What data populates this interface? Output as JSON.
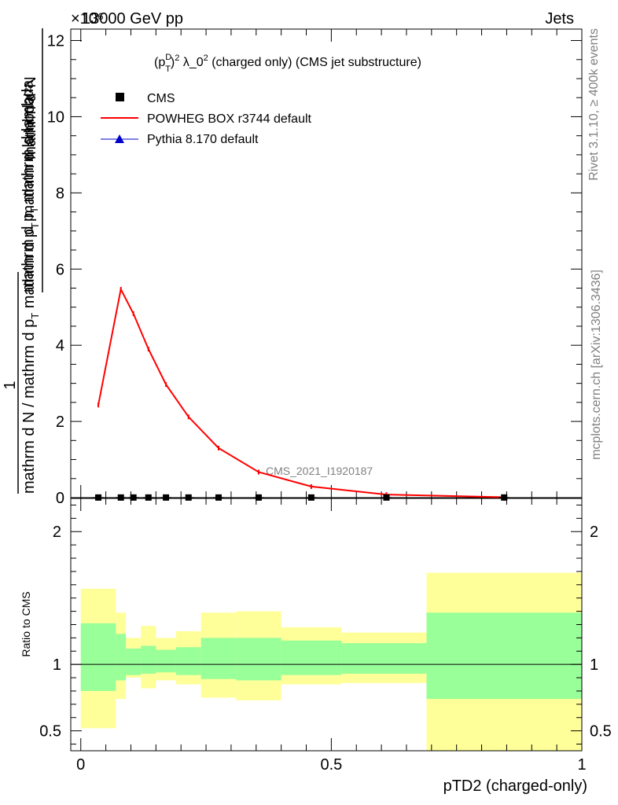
{
  "header": {
    "energy": "13000 GeV pp",
    "category": "Jets",
    "exponent": "×10⁶"
  },
  "side": {
    "rivet": "Rivet 3.1.10, ≥ 400k events",
    "mcplots": "mcplots.cern.ch [arXiv:1306.3436]"
  },
  "colors": {
    "powheg": "#ff0000",
    "pythia": "#0000cc",
    "cms": "#000000",
    "band_inner": "#99ff99",
    "band_outer": "#ffff99"
  },
  "chart_data": [
    {
      "type": "line",
      "title": "(p_T^D)^2 λ_0^2 (charged only) (CMS jet substructure)",
      "title_parts": {
        "pre": "(p",
        "sup1": "D",
        "sub1": "T",
        "mid": ")",
        "sup2": "2",
        "post1": " λ_0",
        "sup3": "2",
        "post2": " (charged only) (CMS jet substructure)"
      },
      "ylabel": "1 / (mathrm d N / mathrm d p_T mathrm d p_T mathrm d lambda) · mathrm d^2N / mathrm d p_T mathrm d lambda",
      "ylabel_parts": {
        "num": "mathrm d²N",
        "den_a": "mathrm d p",
        "den_a_sub": "T",
        "den_b": " mathrm d lambda",
        "one": "1",
        "left_den_a": "mathrm d N / mathrm d p",
        "left_den_a_sub": "T",
        "left_den_b": " mathrm d p",
        "left_den_b_sub": "T",
        "left_den_c": " mathrm d lambda"
      },
      "y_scale_factor": 1000000,
      "ylim": [
        0,
        12.3
      ],
      "yticks": [
        0,
        2,
        4,
        6,
        8,
        10,
        12
      ],
      "xlim": [
        -0.02,
        1.0
      ],
      "legend_position": "top-left",
      "watermark": "CMS_2021_I1920187",
      "series": [
        {
          "name": "CMS",
          "marker": "square",
          "x": [
            0.035,
            0.08,
            0.105,
            0.135,
            0.17,
            0.215,
            0.275,
            0.355,
            0.46,
            0.61,
            0.845
          ],
          "y": [
            0.003,
            0.003,
            0.003,
            0.003,
            0.003,
            0.003,
            0.003,
            0.003,
            0.003,
            0.003,
            0.003
          ]
        },
        {
          "name": "POWHEG BOX r3744 default",
          "marker": "line",
          "x": [
            0.035,
            0.08,
            0.105,
            0.135,
            0.17,
            0.215,
            0.275,
            0.355,
            0.46,
            0.61,
            0.845
          ],
          "y": [
            2.43,
            5.47,
            4.83,
            3.9,
            2.97,
            2.12,
            1.3,
            0.67,
            0.29,
            0.08,
            0.01
          ]
        },
        {
          "name": "Pythia 8.170 default",
          "marker": "triangle",
          "x": [],
          "y": []
        }
      ]
    },
    {
      "type": "area",
      "ylabel": "Ratio to CMS",
      "xlabel": "pTD2 (charged-only)",
      "ylim": [
        0.35,
        2.25
      ],
      "yticks": [
        0.5,
        1,
        2
      ],
      "ytick_labels": [
        "0.5",
        "1",
        "2"
      ],
      "xlim": [
        -0.02,
        1.0
      ],
      "xticks": [
        0,
        0.5,
        1
      ],
      "xtick_labels": [
        "0",
        "0.5",
        "1"
      ],
      "bin_edges": [
        0.0,
        0.07,
        0.09,
        0.12,
        0.15,
        0.19,
        0.24,
        0.31,
        0.4,
        0.52,
        0.69,
        1.0
      ],
      "inner_band": {
        "upper": [
          1.31,
          1.23,
          1.12,
          1.14,
          1.11,
          1.13,
          1.2,
          1.2,
          1.18,
          1.16,
          1.39
        ],
        "lower": [
          0.8,
          0.88,
          0.92,
          0.93,
          0.94,
          0.92,
          0.89,
          0.88,
          0.92,
          0.93,
          0.74
        ]
      },
      "outer_band": {
        "upper": [
          1.57,
          1.39,
          1.2,
          1.29,
          1.2,
          1.25,
          1.39,
          1.4,
          1.28,
          1.24,
          1.69
        ],
        "lower": [
          0.52,
          0.74,
          0.9,
          0.82,
          0.88,
          0.85,
          0.75,
          0.73,
          0.85,
          0.86,
          0.35
        ]
      },
      "reference_line": 1
    }
  ]
}
